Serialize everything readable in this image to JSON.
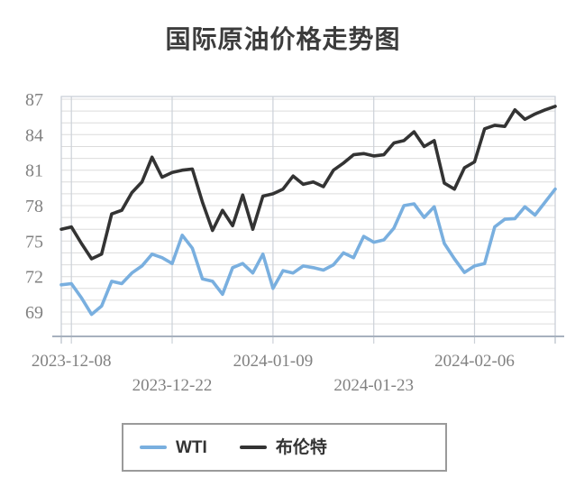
{
  "title": "国际原油价格走势图",
  "legend": {
    "items": [
      {
        "label": "WTI",
        "color": "#79afdf"
      },
      {
        "label": "布伦特",
        "color": "#333333"
      }
    ]
  },
  "axis": {
    "y_tick_labels": [
      "87",
      "84",
      "81",
      "78",
      "75",
      "72",
      "69"
    ],
    "x_tick_labels": [
      "2023-12-08",
      "2023-12-22",
      "2024-01-09",
      "2024-01-23",
      "2024-02-06"
    ]
  },
  "colors": {
    "h_gridline": "#dcdcdc",
    "v_gridline": "#ccd1d8",
    "frame": "#c6ccd4",
    "axis_line": "#a7b1be",
    "tick_label": "#818181"
  },
  "chart_data": {
    "type": "line",
    "title": "国际原油价格走势图",
    "xlabel": "",
    "ylabel": "",
    "grid": true,
    "legend_position": "bottom",
    "n_points": 50,
    "ylim": [
      66.94,
      87.23
    ],
    "y_ticks": [
      87,
      84,
      81,
      78,
      75,
      72,
      69
    ],
    "y_minor_grid_step": 1,
    "x_ticks": [
      {
        "label": "2023-12-08",
        "index": 1,
        "row": 1
      },
      {
        "label": "2023-12-22",
        "index": 11,
        "row": 2
      },
      {
        "label": "2024-01-09",
        "index": 21,
        "row": 1
      },
      {
        "label": "2024-01-23",
        "index": 31,
        "row": 2
      },
      {
        "label": "2024-02-06",
        "index": 41,
        "row": 1
      }
    ],
    "series": [
      {
        "name": "WTI",
        "color": "#79afdf",
        "values": [
          71.3,
          71.4,
          70.2,
          68.8,
          69.5,
          71.6,
          71.4,
          72.3,
          72.9,
          73.9,
          73.6,
          73.1,
          75.5,
          74.4,
          71.8,
          71.6,
          70.5,
          72.75,
          73.1,
          72.3,
          73.9,
          71.0,
          72.5,
          72.3,
          72.9,
          72.75,
          72.55,
          73.0,
          74.0,
          73.6,
          75.4,
          74.9,
          75.1,
          76.1,
          78.0,
          78.15,
          77.0,
          77.9,
          74.8,
          73.5,
          72.35,
          72.9,
          73.1,
          76.2,
          76.85,
          76.9,
          77.9,
          77.2,
          78.3,
          79.4
        ]
      },
      {
        "name": "布伦特",
        "color": "#333333",
        "values": [
          76.0,
          76.2,
          74.8,
          73.5,
          73.9,
          77.3,
          77.6,
          79.1,
          80.0,
          82.1,
          80.4,
          80.8,
          81.0,
          81.1,
          78.3,
          75.9,
          77.6,
          76.3,
          78.9,
          76.0,
          78.8,
          79.0,
          79.4,
          80.5,
          79.8,
          80.0,
          79.6,
          81.0,
          81.6,
          82.3,
          82.4,
          82.2,
          82.3,
          83.3,
          83.5,
          84.25,
          83.0,
          83.5,
          79.9,
          79.4,
          81.2,
          81.7,
          84.5,
          84.8,
          84.7,
          86.1,
          85.3,
          85.75,
          86.1,
          86.4
        ]
      }
    ]
  }
}
